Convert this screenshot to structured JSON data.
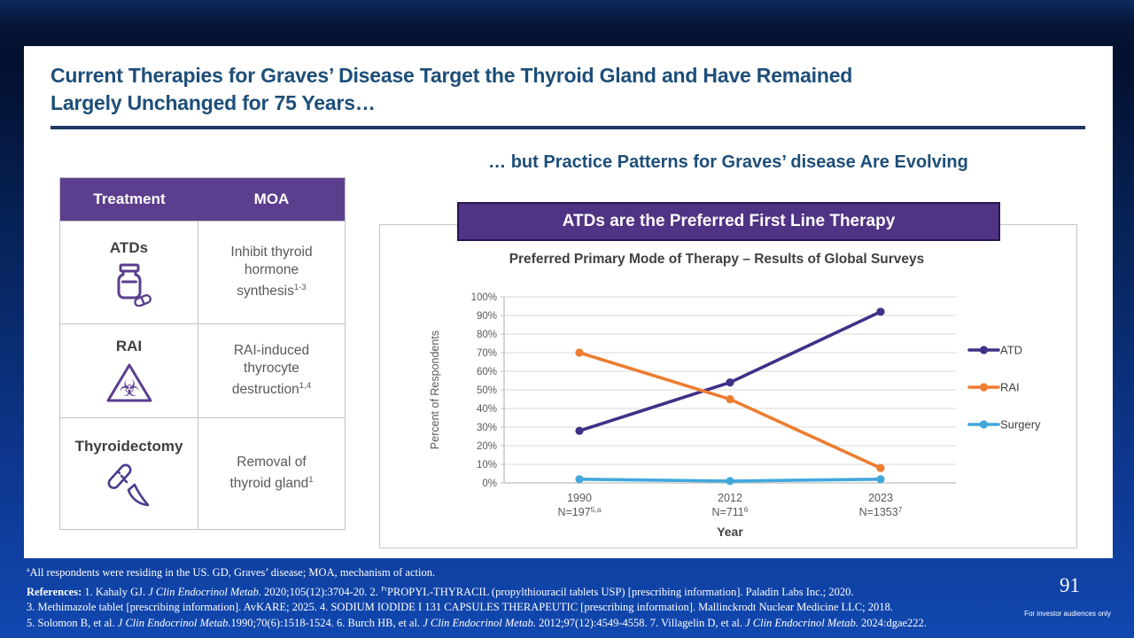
{
  "slide": {
    "title_line1": "Current Therapies for Graves’ Disease Target the Thyroid Gland and Have Remained",
    "title_line2": "Largely Unchanged for 75 Years…",
    "page_number": "91",
    "audience_note": "For investor audiences only"
  },
  "treatment_table": {
    "headers": [
      "Treatment",
      "MOA"
    ],
    "rows": [
      {
        "treatment": "ATDs",
        "icon": "pill-bottle-icon",
        "moa": "Inhibit thyroid hormone synthesis",
        "moa_sup": "1-3"
      },
      {
        "treatment": "RAI",
        "icon": "biohazard-icon",
        "moa": "RAI-induced thyrocyte destruction",
        "moa_sup": "1,4"
      },
      {
        "treatment": "Thyroidectomy",
        "icon": "scalpel-icon",
        "moa": "Removal of thyroid gland",
        "moa_sup": "1"
      }
    ]
  },
  "right_panel": {
    "heading": "… but Practice Patterns for Graves’ disease Are Evolving",
    "banner": "ATDs are the Preferred First Line Therapy"
  },
  "chart_data": {
    "type": "line",
    "title": "Preferred Primary Mode of Therapy – Results of Global Surveys",
    "xlabel": "Year",
    "ylabel": "Percent of Respondents",
    "ylim": [
      0,
      100
    ],
    "ytick_step": 10,
    "ytick_suffix": "%",
    "grid": true,
    "legend_position": "right",
    "categories": [
      {
        "year": "1990",
        "n_label": "N=197",
        "n_sup": "5,a"
      },
      {
        "year": "2012",
        "n_label": "N=711",
        "n_sup": "6"
      },
      {
        "year": "2023",
        "n_label": "N=1353",
        "n_sup": "7"
      }
    ],
    "series": [
      {
        "name": "ATD",
        "color": "#403088",
        "values": [
          28,
          54,
          92
        ]
      },
      {
        "name": "RAI",
        "color": "#ED7D31",
        "values": [
          70,
          45,
          8
        ]
      },
      {
        "name": "Surgery",
        "color": "#41A8DC",
        "values": [
          2,
          1,
          2
        ]
      }
    ]
  },
  "footnotes": {
    "lines": [
      [
        {
          "t": "a",
          "sup": true
        },
        {
          "t": "All respondents were residing in the US. GD, Graves’ disease; MOA, mechanism of action."
        }
      ],
      [
        {
          "t": "References:",
          "bold": true
        },
        {
          "t": " 1. Kahaly GJ. "
        },
        {
          "t": "J Clin Endocrinol Metab.",
          "italic": true
        },
        {
          "t": " 2020;105(12):3704-20. 2. "
        },
        {
          "t": "Pr",
          "sup": true
        },
        {
          "t": "PROPYL-THYRACIL (propylthiouracil tablets USP) [prescribing information]. Paladin Labs Inc.; 2020."
        }
      ],
      [
        {
          "t": "3. Methimazole tablet [prescribing information]. AvKARE; 2025. 4. SODIUM IODIDE I 131 CAPSULES THERAPEUTIC [prescribing information]. Mallinckrodt Nuclear Medicine LLC; 2018."
        }
      ],
      [
        {
          "t": "5. Solomon B, et al. "
        },
        {
          "t": "J Clin Endocrinol Metab.",
          "italic": true
        },
        {
          "t": "1990;70(6):1518-1524. 6. Burch HB, et al. "
        },
        {
          "t": "J Clin Endocrinol Metab.",
          "italic": true
        },
        {
          "t": " 2012;97(12):4549-4558. 7. Villagelin D, et al. "
        },
        {
          "t": "J Clin Endocrinol Metab.",
          "italic": true
        },
        {
          "t": " 2024:dgae222."
        }
      ]
    ]
  },
  "colors": {
    "title_navy": "#1D4E79",
    "rule_navy": "#1F3864",
    "table_header_purple": "#5B3E8E",
    "banner_purple": "#4F3384",
    "banner_border": "#2A1650",
    "grid_gray": "#D9D9D9",
    "axis_gray": "#BFBFBF",
    "background_blue_bottom": "#1148B0",
    "background_navy_top": "#03102E",
    "icon_purple": "#5B3E8E"
  }
}
